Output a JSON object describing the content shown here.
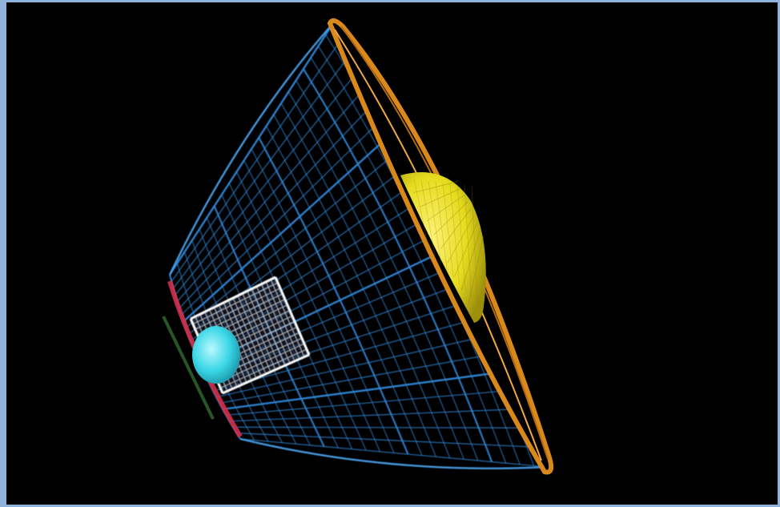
{
  "scene": {
    "subject": "wireframe-3d-rendering",
    "colors": {
      "background": "#000000",
      "frame": "#8fb3dc",
      "wireframe": "#2f86d6",
      "rim": "#d9891c",
      "dome": "#e6dc1e",
      "box": "#e8eef7",
      "sphere": "#39d6e6",
      "base-left": "#d0304a",
      "base-shadow": "#2f6a2f"
    }
  }
}
